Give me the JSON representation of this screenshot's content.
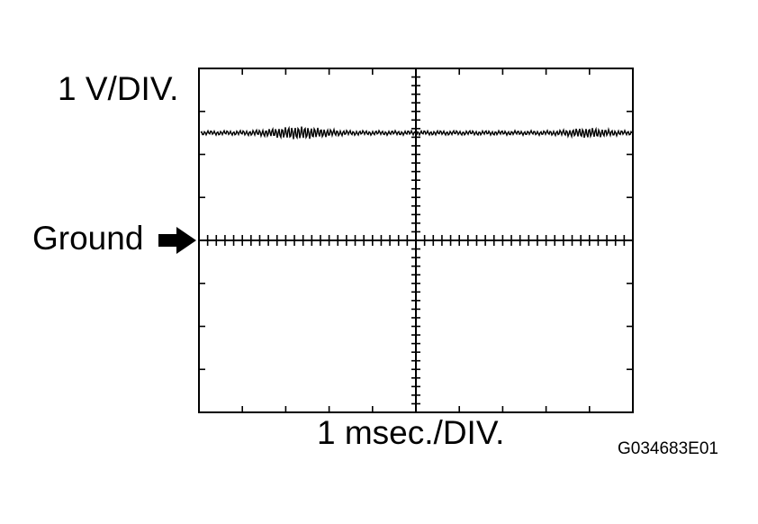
{
  "labels": {
    "volts_per_div": "1 V/DIV.",
    "ground": "Ground",
    "time_per_div": "1 msec./DIV.",
    "figure_code": "G034683E01"
  },
  "scope": {
    "h_divisions": 10,
    "v_divisions": 8,
    "ground_division_from_top": 4,
    "signal_level_divisions": 2.5,
    "ground_marker": "arrow-right-icon",
    "line_color": "#000000",
    "background_color": "#ffffff"
  }
}
